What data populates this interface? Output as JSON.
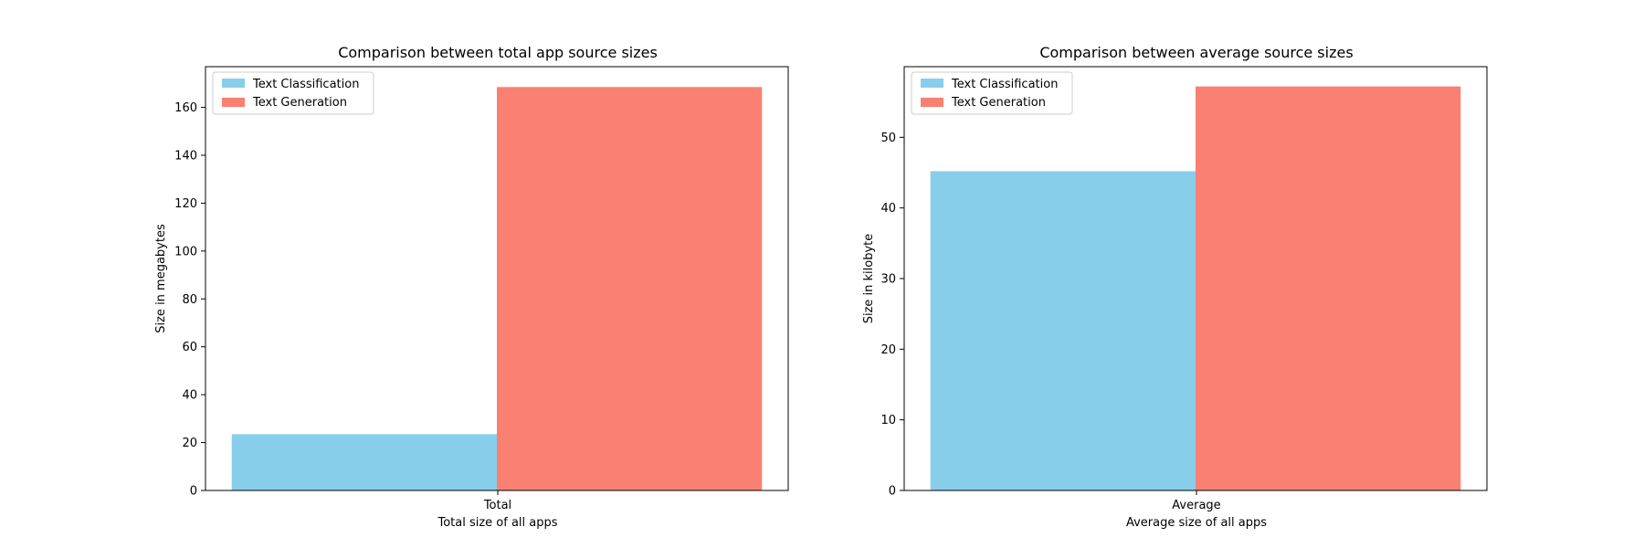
{
  "chart_data": [
    {
      "type": "bar",
      "title": "Comparison between total app source sizes",
      "categories": [
        "Total"
      ],
      "xlabel": "Total size of all apps",
      "ylabel": "Size in megabytes",
      "ylim": [
        0,
        177
      ],
      "yticks": [
        0,
        20,
        40,
        60,
        80,
        100,
        120,
        140,
        160
      ],
      "legend_position": "top-left",
      "series": [
        {
          "name": "Text Classification",
          "values": [
            23.5
          ],
          "color": "#87CEEB"
        },
        {
          "name": "Text Generation",
          "values": [
            168.5
          ],
          "color": "#FA8072"
        }
      ]
    },
    {
      "type": "bar",
      "title": "Comparison between average source sizes",
      "categories": [
        "Average"
      ],
      "xlabel": "Average size of all apps",
      "ylabel": "Size in kilobyte",
      "ylim": [
        0,
        60
      ],
      "yticks": [
        0,
        10,
        20,
        30,
        40,
        50
      ],
      "legend_position": "top-left",
      "series": [
        {
          "name": "Text Classification",
          "values": [
            45.2
          ],
          "color": "#87CEEB"
        },
        {
          "name": "Text Generation",
          "values": [
            57.2
          ],
          "color": "#FA8072"
        }
      ]
    }
  ]
}
